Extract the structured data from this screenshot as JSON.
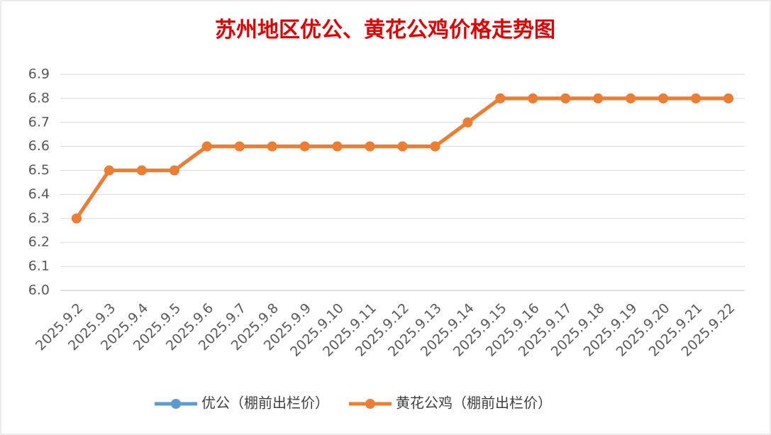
{
  "chart_data": {
    "type": "line",
    "title": "苏州地区优公、黄花公鸡价格走势图",
    "categories": [
      "2025.9.2",
      "2025.9.3",
      "2025.9.4",
      "2025.9.5",
      "2025.9.6",
      "2025.9.7",
      "2025.9.8",
      "2025.9.9",
      "2025.9.10",
      "2025.9.11",
      "2025.9.12",
      "2025.9.13",
      "2025.9.14",
      "2025.9.15",
      "2025.9.16",
      "2025.9.17",
      "2025.9.18",
      "2025.9.19",
      "2025.9.20",
      "2025.9.21",
      "2025.9.22"
    ],
    "series": [
      {
        "name": "优公（棚前出栏价）",
        "color": "#5b9bd5",
        "values": [
          6.3,
          6.5,
          6.5,
          6.5,
          6.6,
          6.6,
          6.6,
          6.6,
          6.6,
          6.6,
          6.6,
          6.6,
          6.7,
          6.8,
          6.8,
          6.8,
          6.8,
          6.8,
          6.8,
          6.8,
          6.8
        ]
      },
      {
        "name": "黄花公鸡（棚前出栏价）",
        "color": "#ed7d31",
        "values": [
          6.3,
          6.5,
          6.5,
          6.5,
          6.6,
          6.6,
          6.6,
          6.6,
          6.6,
          6.6,
          6.6,
          6.6,
          6.7,
          6.8,
          6.8,
          6.8,
          6.8,
          6.8,
          6.8,
          6.8,
          6.8
        ]
      }
    ],
    "ylim": [
      6.0,
      6.9
    ],
    "yticks": [
      {
        "value": 6.0,
        "label": "6.0"
      },
      6.1,
      6.2,
      6.3,
      6.4,
      6.5,
      6.6,
      6.7,
      6.8,
      6.9
    ],
    "grid": true,
    "legend": "bottom"
  }
}
